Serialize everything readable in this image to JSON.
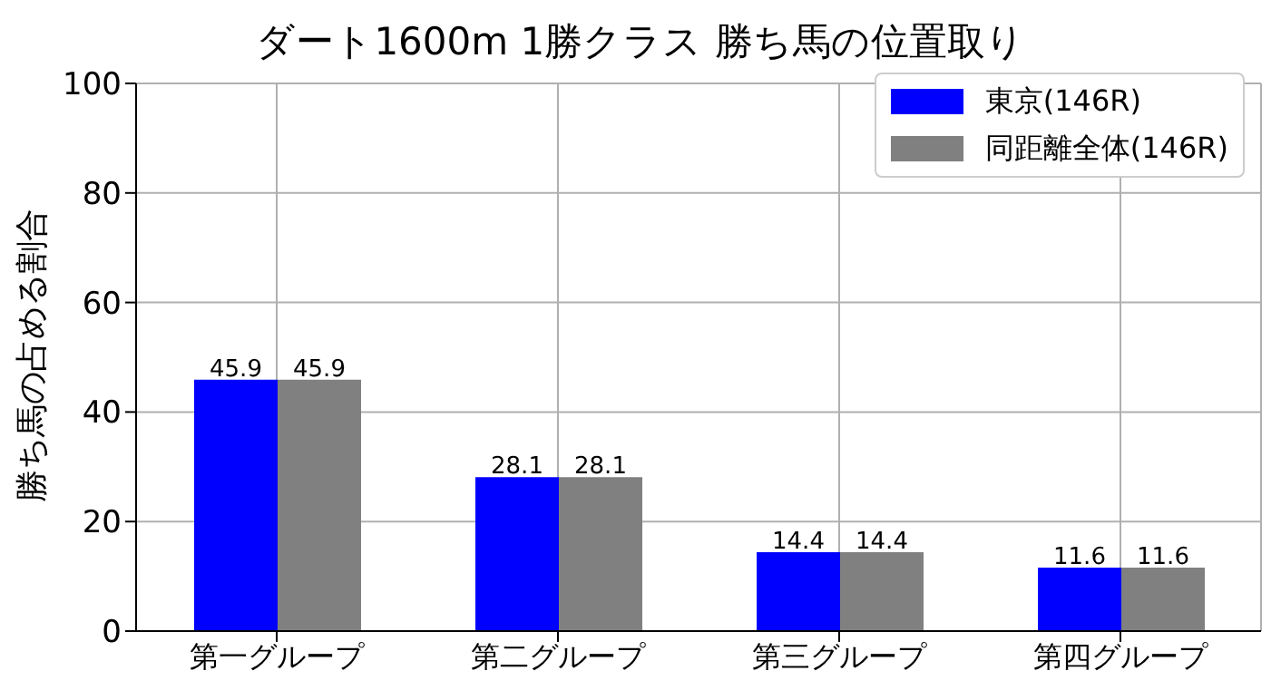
{
  "chart_data": {
    "type": "bar",
    "title": "ダート1600m 1勝クラス 勝ち馬の位置取り",
    "ylabel": "勝ち馬の占める割合",
    "categories": [
      "第一グループ",
      "第二グループ",
      "第三グループ",
      "第四グループ"
    ],
    "series": [
      {
        "name": "東京(146R)",
        "color": "#0000ff",
        "values": [
          45.9,
          28.1,
          14.4,
          11.6
        ]
      },
      {
        "name": "同距離全体(146R)",
        "color": "#808080",
        "values": [
          45.9,
          28.1,
          14.4,
          11.6
        ]
      }
    ],
    "ylim": [
      0,
      100
    ],
    "yticks": [
      0,
      20,
      40,
      60,
      80,
      100
    ],
    "grid": true,
    "legend": "top right",
    "data_labels": true
  }
}
